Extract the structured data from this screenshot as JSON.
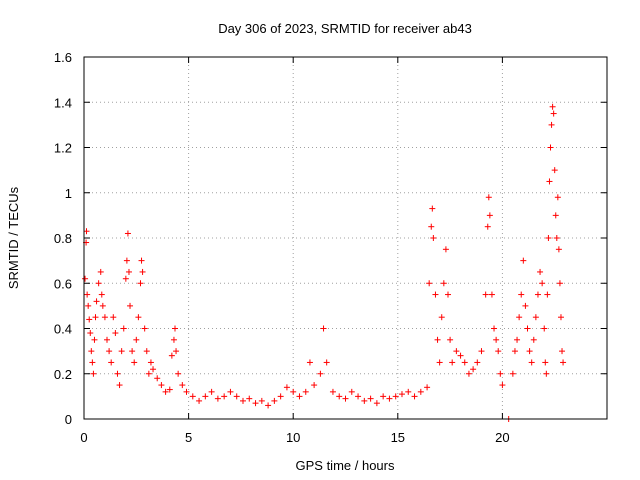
{
  "chart_data": {
    "type": "scatter",
    "title": "Day 306 of 2023, SRMTID for receiver ab43",
    "xlabel": "GPS time / hours",
    "ylabel": "SRMTID / TECUs",
    "xlim": [
      0,
      25
    ],
    "ylim": [
      0,
      1.6
    ],
    "xticks": [
      0,
      5,
      10,
      15,
      20
    ],
    "yticks": [
      0,
      0.2,
      0.4,
      0.6,
      0.8,
      1,
      1.2,
      1.4,
      1.6
    ],
    "xtick_labels": [
      "0",
      "5",
      "10",
      "15",
      "20"
    ],
    "ytick_labels": [
      "0",
      "0.2",
      "0.4",
      "0.6",
      "0.8",
      "1",
      "1.2",
      "1.4",
      "1.6"
    ],
    "grid": true,
    "marker": "+",
    "color": "#ff0000",
    "series": [
      {
        "name": "SRMTID",
        "points": [
          [
            0.05,
            0.62
          ],
          [
            0.1,
            0.78
          ],
          [
            0.12,
            0.83
          ],
          [
            0.15,
            0.55
          ],
          [
            0.2,
            0.5
          ],
          [
            0.25,
            0.44
          ],
          [
            0.3,
            0.38
          ],
          [
            0.35,
            0.3
          ],
          [
            0.4,
            0.25
          ],
          [
            0.45,
            0.2
          ],
          [
            0.5,
            0.35
          ],
          [
            0.55,
            0.45
          ],
          [
            0.6,
            0.52
          ],
          [
            0.7,
            0.6
          ],
          [
            0.8,
            0.65
          ],
          [
            0.85,
            0.55
          ],
          [
            0.9,
            0.5
          ],
          [
            1.0,
            0.45
          ],
          [
            1.1,
            0.35
          ],
          [
            1.2,
            0.3
          ],
          [
            1.3,
            0.25
          ],
          [
            1.4,
            0.45
          ],
          [
            1.5,
            0.38
          ],
          [
            1.6,
            0.2
          ],
          [
            1.7,
            0.15
          ],
          [
            1.8,
            0.3
          ],
          [
            1.9,
            0.4
          ],
          [
            2.0,
            0.62
          ],
          [
            2.05,
            0.7
          ],
          [
            2.1,
            0.82
          ],
          [
            2.15,
            0.65
          ],
          [
            2.2,
            0.5
          ],
          [
            2.3,
            0.3
          ],
          [
            2.4,
            0.25
          ],
          [
            2.5,
            0.35
          ],
          [
            2.6,
            0.45
          ],
          [
            2.7,
            0.6
          ],
          [
            2.75,
            0.7
          ],
          [
            2.8,
            0.65
          ],
          [
            2.9,
            0.4
          ],
          [
            3.0,
            0.3
          ],
          [
            3.1,
            0.2
          ],
          [
            3.2,
            0.25
          ],
          [
            3.3,
            0.22
          ],
          [
            3.5,
            0.18
          ],
          [
            3.7,
            0.15
          ],
          [
            3.9,
            0.12
          ],
          [
            4.1,
            0.13
          ],
          [
            4.2,
            0.28
          ],
          [
            4.3,
            0.35
          ],
          [
            4.35,
            0.4
          ],
          [
            4.4,
            0.3
          ],
          [
            4.5,
            0.2
          ],
          [
            4.7,
            0.15
          ],
          [
            4.9,
            0.12
          ],
          [
            5.2,
            0.1
          ],
          [
            5.5,
            0.08
          ],
          [
            5.8,
            0.1
          ],
          [
            6.1,
            0.12
          ],
          [
            6.4,
            0.09
          ],
          [
            6.7,
            0.1
          ],
          [
            7.0,
            0.12
          ],
          [
            7.3,
            0.1
          ],
          [
            7.6,
            0.08
          ],
          [
            7.9,
            0.09
          ],
          [
            8.2,
            0.07
          ],
          [
            8.5,
            0.08
          ],
          [
            8.8,
            0.06
          ],
          [
            9.1,
            0.08
          ],
          [
            9.4,
            0.1
          ],
          [
            9.7,
            0.14
          ],
          [
            10.0,
            0.12
          ],
          [
            10.3,
            0.1
          ],
          [
            10.6,
            0.12
          ],
          [
            10.8,
            0.25
          ],
          [
            11.0,
            0.15
          ],
          [
            11.3,
            0.2
          ],
          [
            11.45,
            0.4
          ],
          [
            11.6,
            0.25
          ],
          [
            11.9,
            0.12
          ],
          [
            12.2,
            0.1
          ],
          [
            12.5,
            0.09
          ],
          [
            12.8,
            0.12
          ],
          [
            13.1,
            0.1
          ],
          [
            13.4,
            0.08
          ],
          [
            13.7,
            0.09
          ],
          [
            14.0,
            0.07
          ],
          [
            14.3,
            0.1
          ],
          [
            14.6,
            0.09
          ],
          [
            14.9,
            0.1
          ],
          [
            15.2,
            0.11
          ],
          [
            15.5,
            0.12
          ],
          [
            15.8,
            0.1
          ],
          [
            16.1,
            0.12
          ],
          [
            16.4,
            0.14
          ],
          [
            16.5,
            0.6
          ],
          [
            16.6,
            0.85
          ],
          [
            16.65,
            0.93
          ],
          [
            16.7,
            0.8
          ],
          [
            16.8,
            0.55
          ],
          [
            16.9,
            0.35
          ],
          [
            17.0,
            0.25
          ],
          [
            17.1,
            0.45
          ],
          [
            17.2,
            0.6
          ],
          [
            17.3,
            0.75
          ],
          [
            17.4,
            0.55
          ],
          [
            17.5,
            0.35
          ],
          [
            17.6,
            0.25
          ],
          [
            17.8,
            0.3
          ],
          [
            18.0,
            0.28
          ],
          [
            18.2,
            0.25
          ],
          [
            18.4,
            0.2
          ],
          [
            18.6,
            0.22
          ],
          [
            18.8,
            0.25
          ],
          [
            19.0,
            0.3
          ],
          [
            19.2,
            0.55
          ],
          [
            19.3,
            0.85
          ],
          [
            19.35,
            0.98
          ],
          [
            19.4,
            0.9
          ],
          [
            19.5,
            0.55
          ],
          [
            19.6,
            0.4
          ],
          [
            19.7,
            0.35
          ],
          [
            19.8,
            0.3
          ],
          [
            19.9,
            0.2
          ],
          [
            20.0,
            0.15
          ],
          [
            20.3,
            0.0
          ],
          [
            20.5,
            0.2
          ],
          [
            20.6,
            0.3
          ],
          [
            20.7,
            0.35
          ],
          [
            20.8,
            0.45
          ],
          [
            20.9,
            0.55
          ],
          [
            21.0,
            0.7
          ],
          [
            21.1,
            0.5
          ],
          [
            21.2,
            0.4
          ],
          [
            21.3,
            0.3
          ],
          [
            21.4,
            0.25
          ],
          [
            21.5,
            0.35
          ],
          [
            21.6,
            0.45
          ],
          [
            21.7,
            0.55
          ],
          [
            21.8,
            0.65
          ],
          [
            21.9,
            0.6
          ],
          [
            22.0,
            0.4
          ],
          [
            22.05,
            0.25
          ],
          [
            22.1,
            0.2
          ],
          [
            22.15,
            0.55
          ],
          [
            22.2,
            0.8
          ],
          [
            22.25,
            1.05
          ],
          [
            22.3,
            1.2
          ],
          [
            22.35,
            1.3
          ],
          [
            22.4,
            1.38
          ],
          [
            22.45,
            1.35
          ],
          [
            22.5,
            1.1
          ],
          [
            22.55,
            0.9
          ],
          [
            22.6,
            0.8
          ],
          [
            22.65,
            0.98
          ],
          [
            22.7,
            0.75
          ],
          [
            22.75,
            0.6
          ],
          [
            22.8,
            0.45
          ],
          [
            22.85,
            0.3
          ],
          [
            22.9,
            0.25
          ]
        ]
      }
    ]
  }
}
